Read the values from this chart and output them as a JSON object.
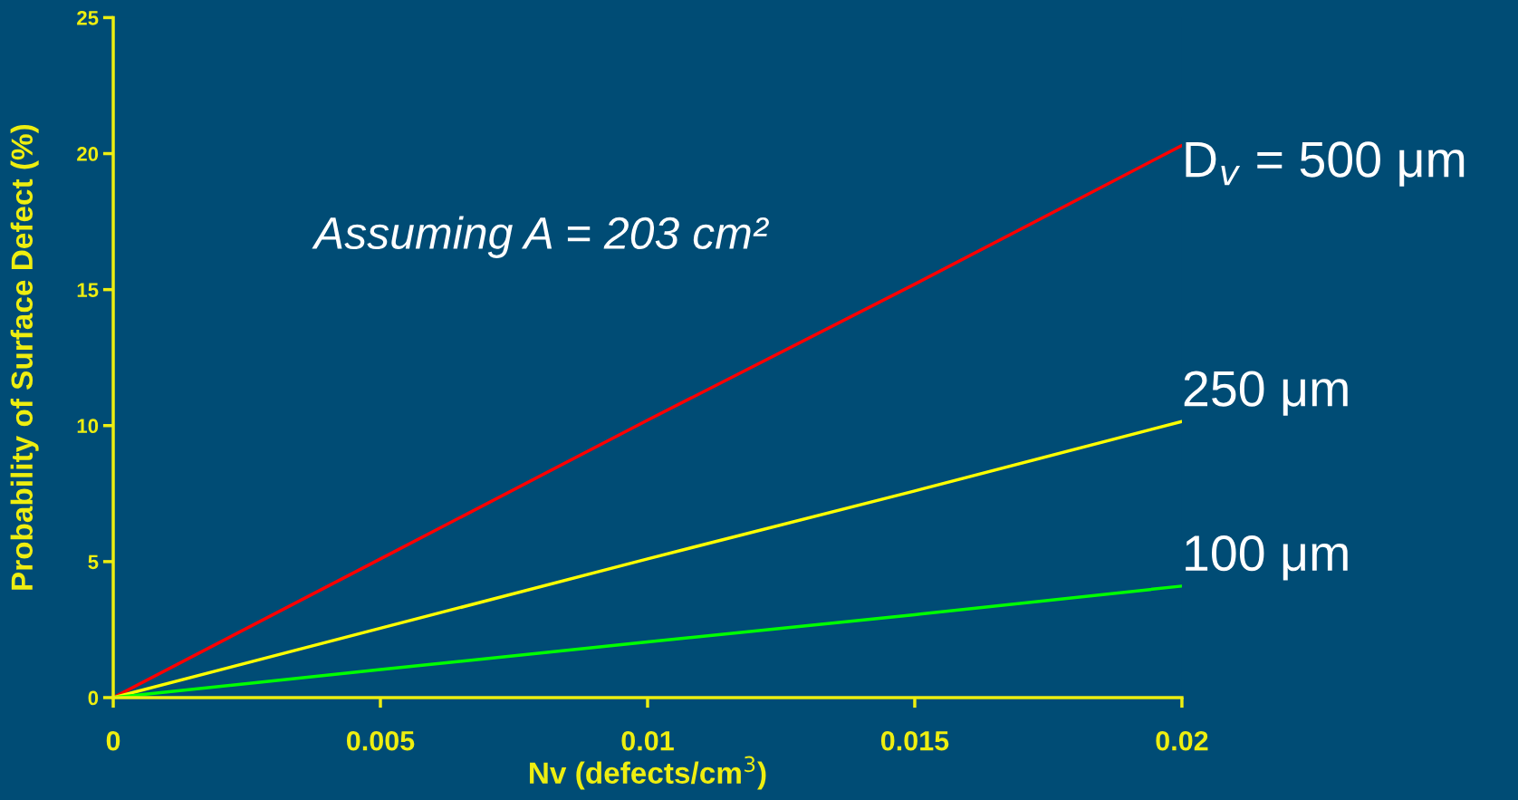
{
  "chart_data": {
    "type": "line",
    "xlabel": "Nv (defects/cm$^{3}$)",
    "ylabel": "Probability of Surface Defect (%)",
    "x": [
      0,
      0.005,
      0.01,
      0.015,
      0.02
    ],
    "series": [
      {
        "name": "D$_{v}$ = 500 μm",
        "color": "#ff0000",
        "values": [
          0,
          5.1,
          10.2,
          15.2,
          20.3
        ]
      },
      {
        "name": "250 μm",
        "color": "#ffff00",
        "values": [
          0,
          2.55,
          5.1,
          7.6,
          10.15
        ]
      },
      {
        "name": "100 μm",
        "color": "#00ff00",
        "values": [
          0,
          1.03,
          2.05,
          3.05,
          4.1
        ]
      }
    ],
    "xlim": [
      0,
      0.02
    ],
    "ylim": [
      0,
      25
    ],
    "xticks": [
      0,
      0.005,
      0.01,
      0.015,
      0.02
    ],
    "yticks": [
      0,
      5,
      10,
      15,
      20,
      25
    ],
    "annotations": [
      "Assuming A = 203 cm²"
    ],
    "grid": false,
    "legend": false,
    "marker": "none",
    "line_style": "solid"
  }
}
